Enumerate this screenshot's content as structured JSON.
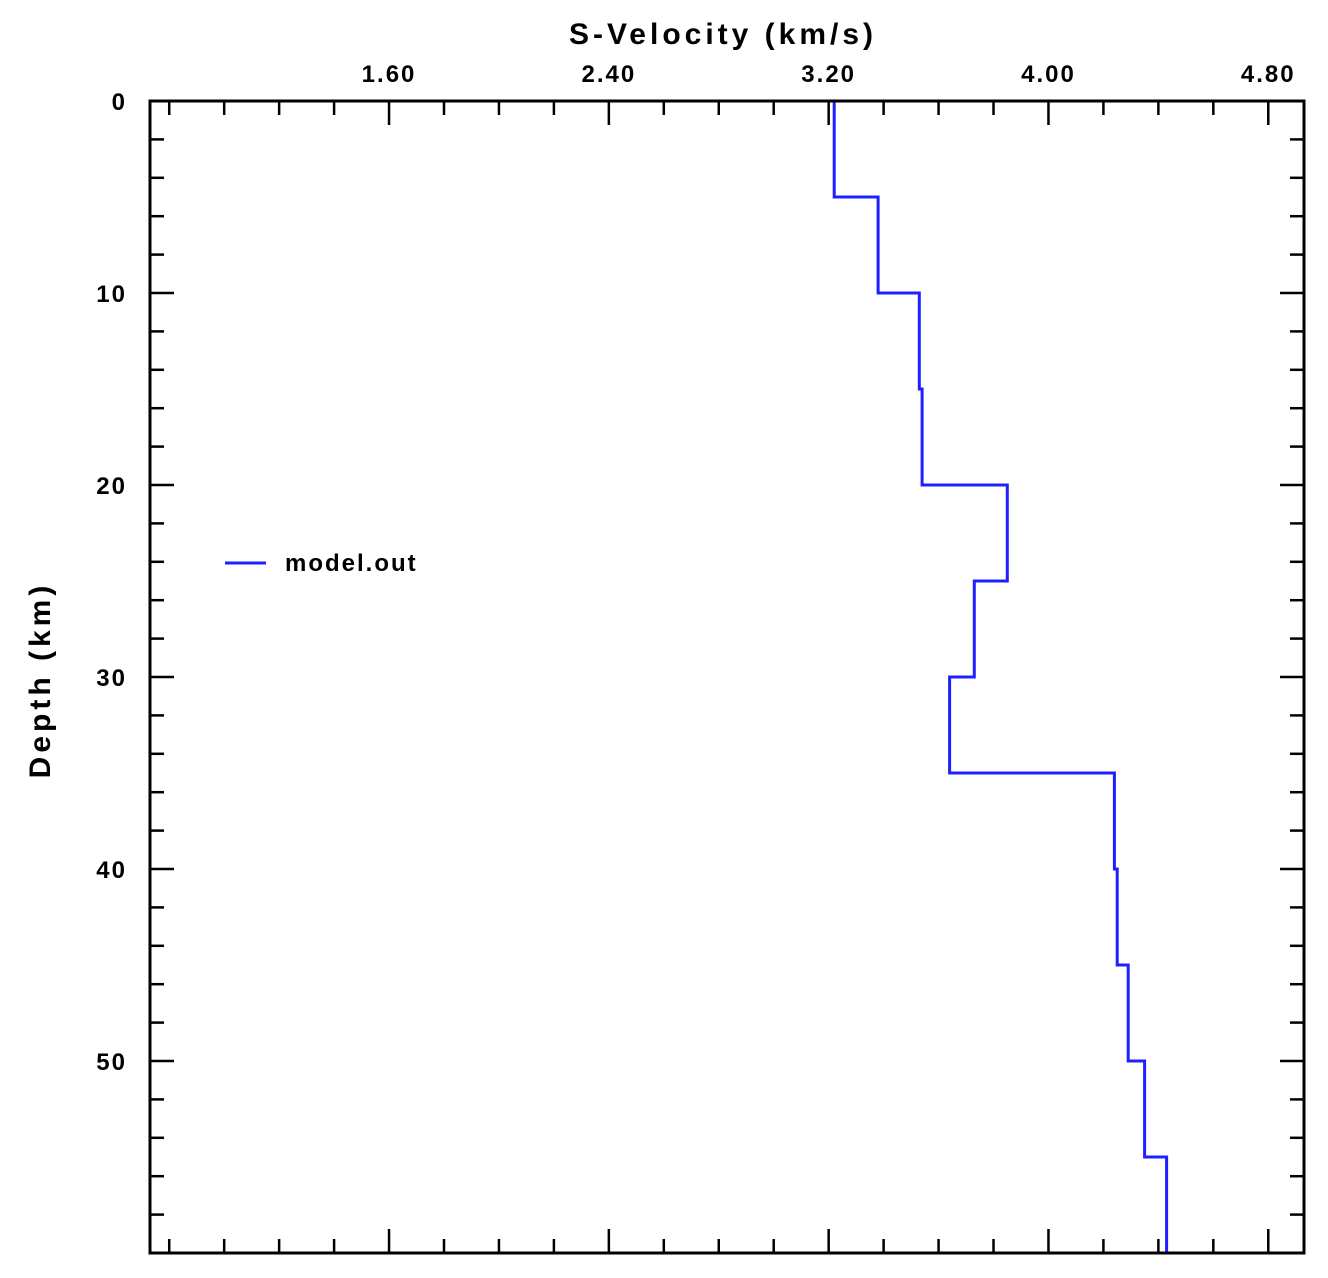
{
  "chart_data": {
    "type": "line",
    "title": "",
    "xlabel": "S-Velocity (km/s)",
    "ylabel": "Depth (km)",
    "x_axis_position": "top",
    "y_axis_inverted": true,
    "xlim": [
      0.73,
      4.93
    ],
    "ylim": [
      0,
      60
    ],
    "xticks": [
      1.6,
      2.4,
      3.2,
      4.0,
      4.8
    ],
    "xtick_labels": [
      "1.60",
      "2.40",
      "3.20",
      "4.00",
      "4.80"
    ],
    "yticks": [
      0,
      10,
      20,
      30,
      40,
      50
    ],
    "ytick_labels": [
      "0",
      "10",
      "20",
      "30",
      "40",
      "50"
    ],
    "grid": false,
    "legend_position": "upper-left",
    "series": [
      {
        "name": "model.out",
        "color": "#1f1fff",
        "step_profile": true,
        "layers": [
          {
            "top": 0,
            "bottom": 5,
            "vs": 3.22
          },
          {
            "top": 5,
            "bottom": 10,
            "vs": 3.38
          },
          {
            "top": 10,
            "bottom": 15,
            "vs": 3.53
          },
          {
            "top": 15,
            "bottom": 20,
            "vs": 3.54
          },
          {
            "top": 20,
            "bottom": 25,
            "vs": 3.85
          },
          {
            "top": 25,
            "bottom": 30,
            "vs": 3.73
          },
          {
            "top": 30,
            "bottom": 35,
            "vs": 3.64
          },
          {
            "top": 35,
            "bottom": 40,
            "vs": 4.24
          },
          {
            "top": 40,
            "bottom": 45,
            "vs": 4.25
          },
          {
            "top": 45,
            "bottom": 50,
            "vs": 4.29
          },
          {
            "top": 50,
            "bottom": 55,
            "vs": 4.35
          },
          {
            "top": 55,
            "bottom": 60,
            "vs": 4.43
          }
        ],
        "tail_vs": 4.47
      }
    ]
  }
}
